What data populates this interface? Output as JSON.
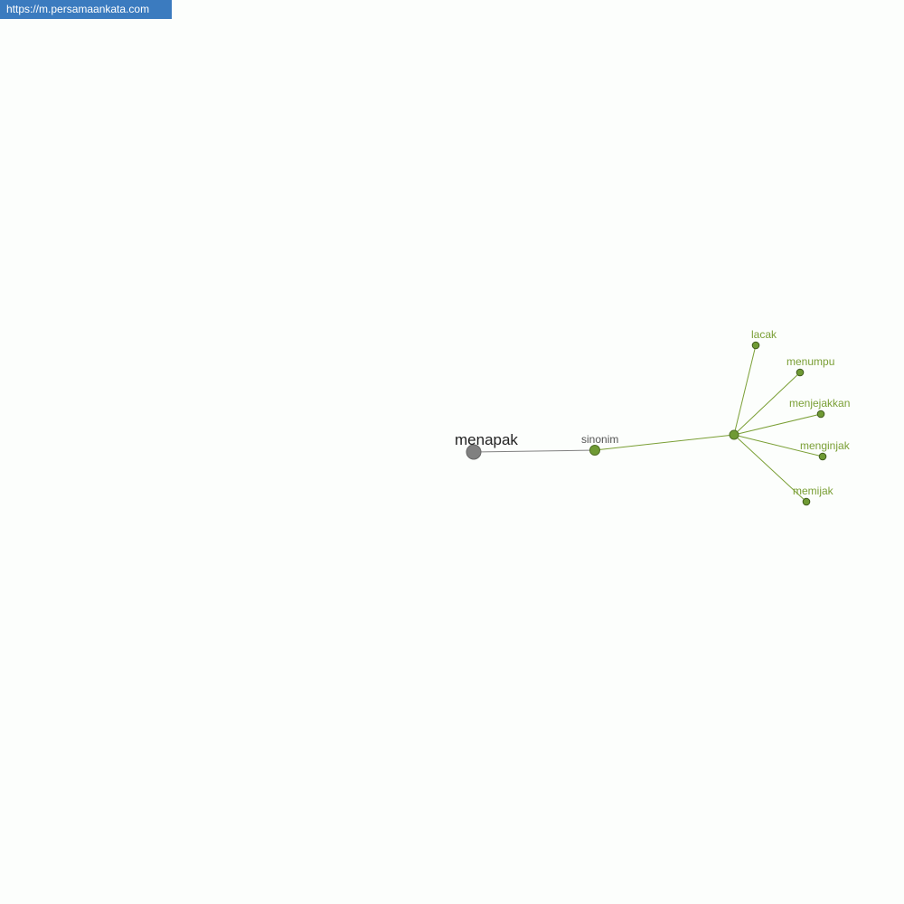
{
  "watermark": {
    "url": "https://m.persamaankata.com"
  },
  "graph": {
    "root": {
      "label": "menapak"
    },
    "relation": {
      "label": "sinonim"
    },
    "leaves": [
      {
        "label": "lacak"
      },
      {
        "label": "menumpu"
      },
      {
        "label": "menjejakkan"
      },
      {
        "label": "menginjak"
      },
      {
        "label": "memijak"
      }
    ]
  },
  "colors": {
    "root": "#808080",
    "node": "#6f9a34",
    "edge": "#7a9f35",
    "label": "#7a9f35",
    "banner": "#3b7bbf"
  }
}
